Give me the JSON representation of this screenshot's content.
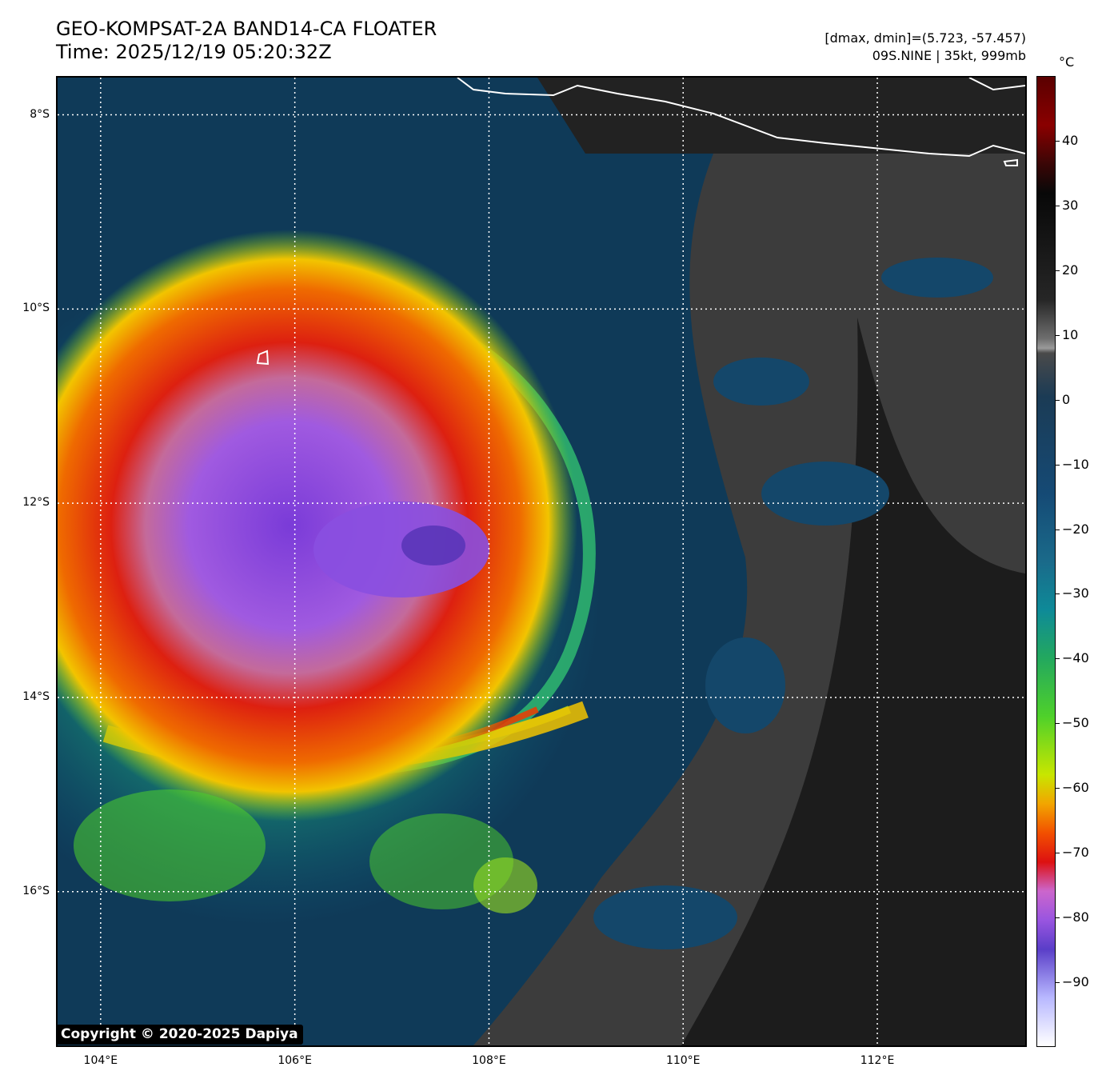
{
  "title": {
    "line1": "GEO-KOMPSAT-2A BAND14-CA FLOATER",
    "line2": "Time: 2025/12/19 05:20:32Z"
  },
  "info": {
    "line1": "[dmax, dmin]=(5.723, -57.457)",
    "line2": "09S.NINE | 35kt, 999mb"
  },
  "map": {
    "lat_labels": [
      "8°S",
      "10°S",
      "12°S",
      "14°S",
      "16°S"
    ],
    "lon_labels": [
      "104°E",
      "106°E",
      "108°E",
      "110°E",
      "112°E"
    ],
    "lat_values": [
      -8,
      -10,
      -12,
      -14,
      -16
    ],
    "lon_values": [
      104,
      106,
      108,
      110,
      112
    ],
    "lat_range": [
      -17.6,
      -7.6
    ],
    "lon_range": [
      103.54,
      113.54
    ],
    "grid": "dotted white"
  },
  "colorbar": {
    "unit": "°C",
    "labels": [
      "40",
      "30",
      "20",
      "10",
      "0",
      "−10",
      "−20",
      "−30",
      "−40",
      "−50",
      "−60",
      "−70",
      "−80",
      "−90"
    ],
    "values": [
      40,
      30,
      20,
      10,
      0,
      -10,
      -20,
      -30,
      -40,
      -50,
      -60,
      -70,
      -80,
      -90
    ],
    "range": [
      -100,
      50
    ]
  },
  "copyright": "Copyright © 2020-2025 Dapiya",
  "colors": {
    "ocean": "#0d3550",
    "clear_land": "#222222",
    "cloud_grey": "#6a6a6a",
    "cold_red": "#dd1111",
    "coldest_purple": "#8a4fe0",
    "coast": "#ffffff"
  }
}
